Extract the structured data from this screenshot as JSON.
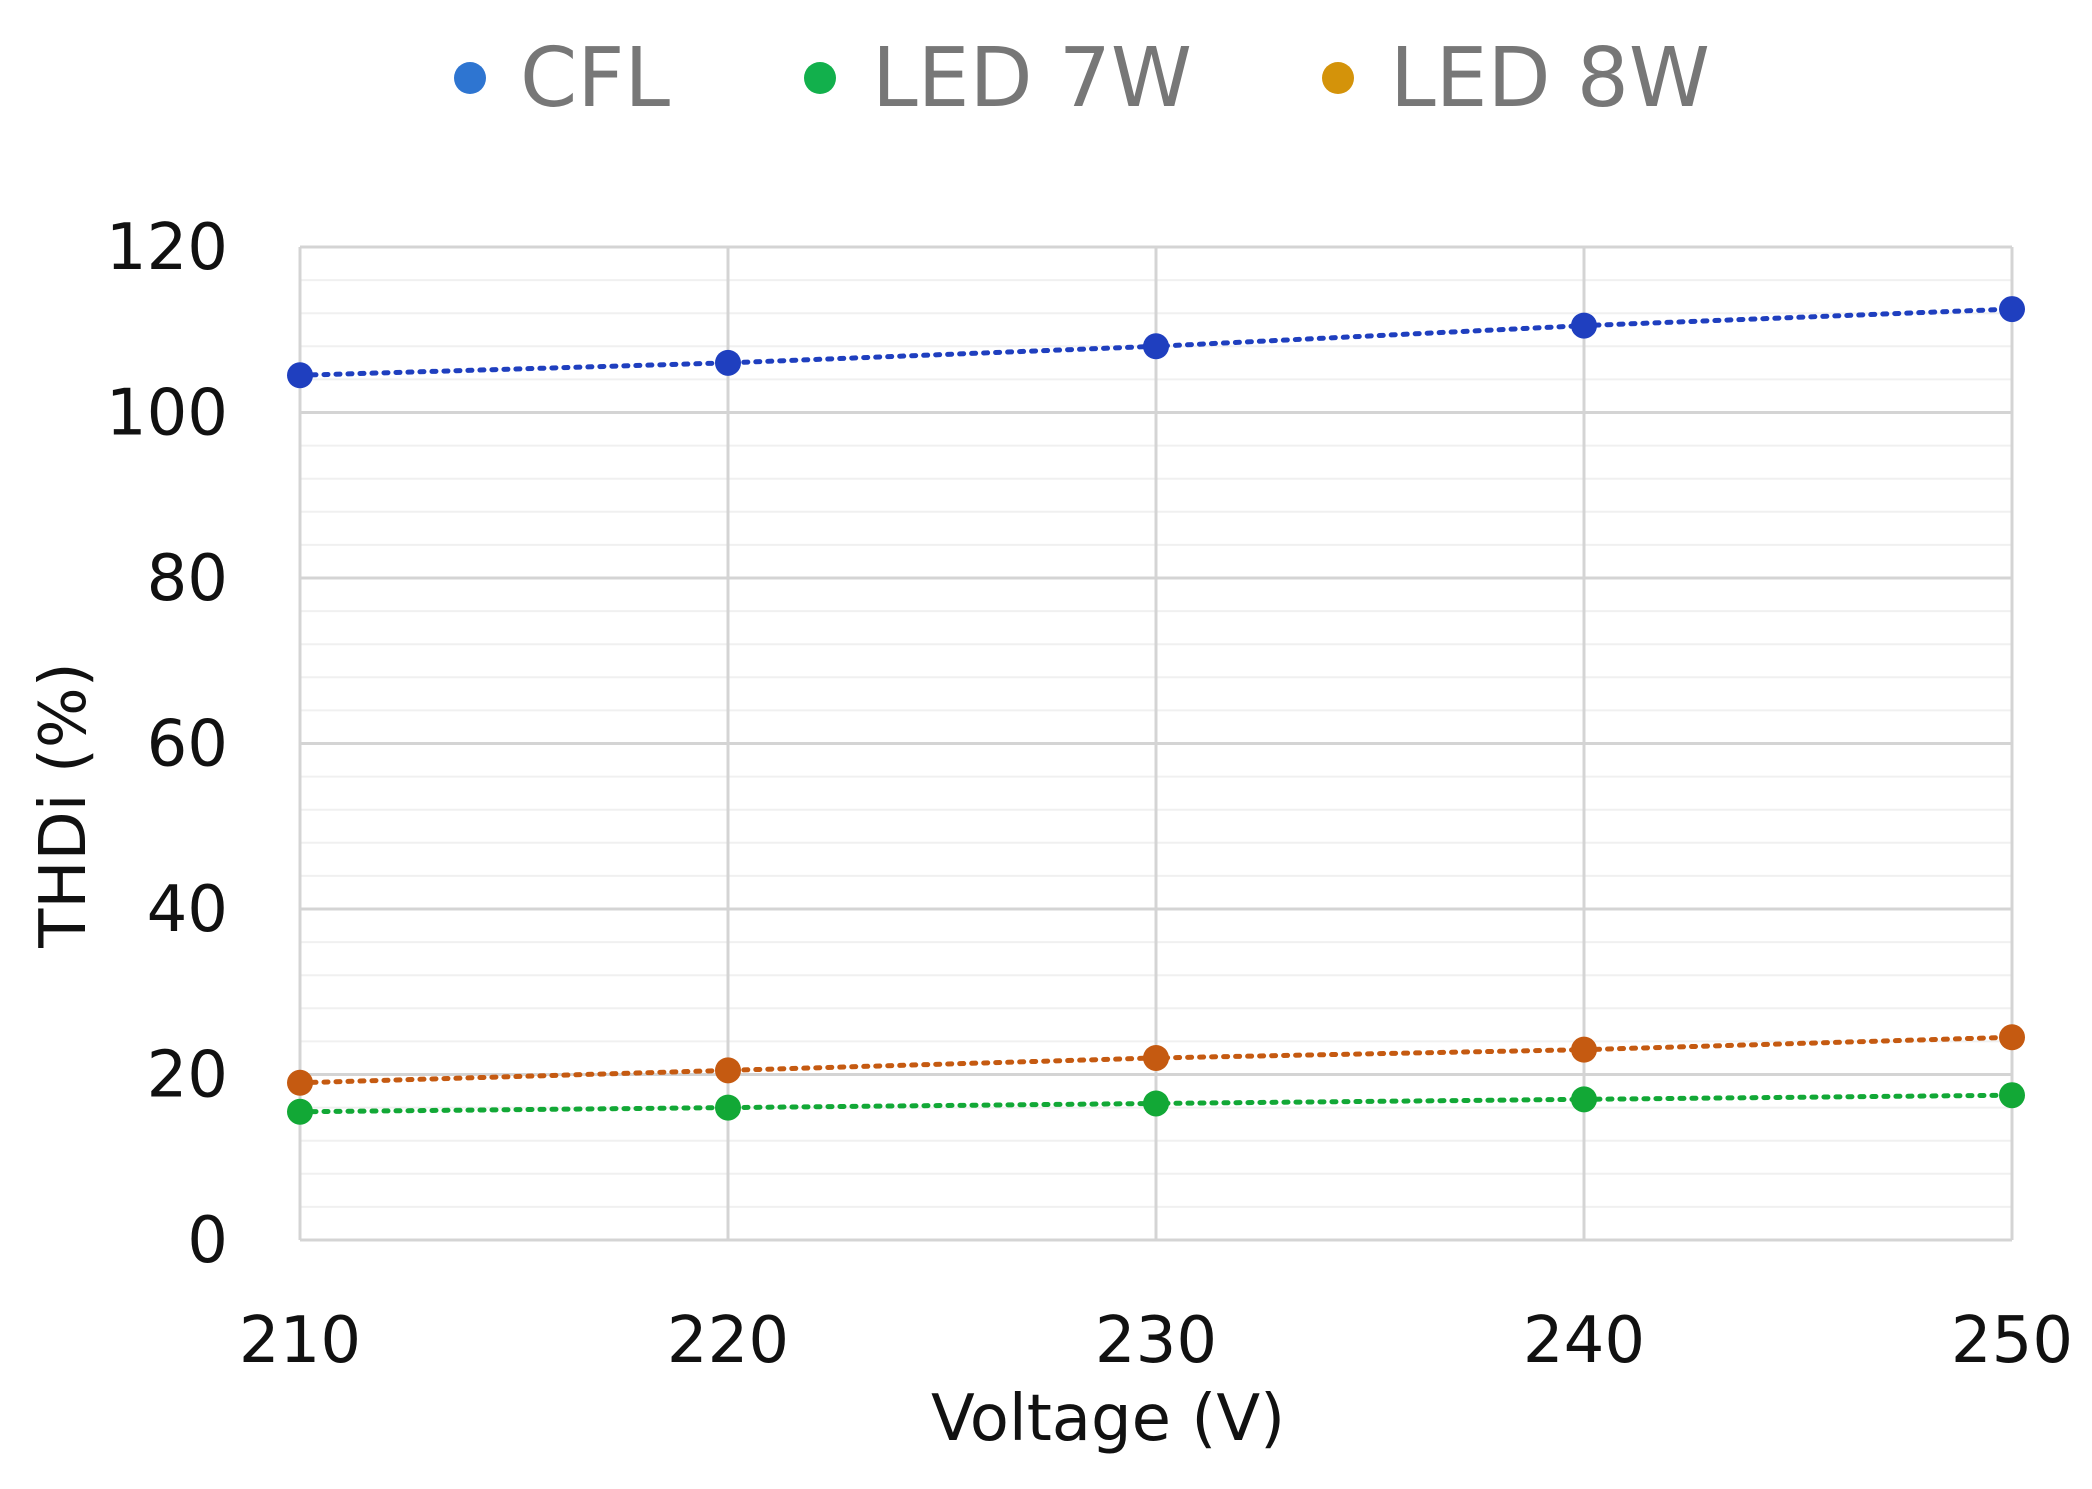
{
  "chart_data": {
    "type": "line",
    "title": "",
    "xlabel": "Voltage (V)",
    "ylabel": "THDi (%)",
    "x": [
      210,
      220,
      230,
      240,
      250
    ],
    "x_ticks": [
      "210",
      "220",
      "230",
      "240",
      "250"
    ],
    "y_ticks": [
      "0",
      "20",
      "40",
      "60",
      "80",
      "100",
      "120"
    ],
    "xlim": [
      210,
      250
    ],
    "ylim": [
      0,
      120
    ],
    "grid": true,
    "legend_position": "top",
    "series": [
      {
        "name": "CFL",
        "color": "#1f3fbf",
        "legend_color": "#2e75d1",
        "values": [
          104.5,
          106,
          108,
          110.5,
          112.5
        ]
      },
      {
        "name": "LED 7W",
        "color": "#12a836",
        "legend_color": "#12b04c",
        "values": [
          15.5,
          16,
          16.5,
          17,
          17.5
        ]
      },
      {
        "name": "LED 8W",
        "color": "#c55a11",
        "legend_color": "#d4930a",
        "values": [
          19,
          20.5,
          22,
          23,
          24.5
        ]
      }
    ]
  }
}
